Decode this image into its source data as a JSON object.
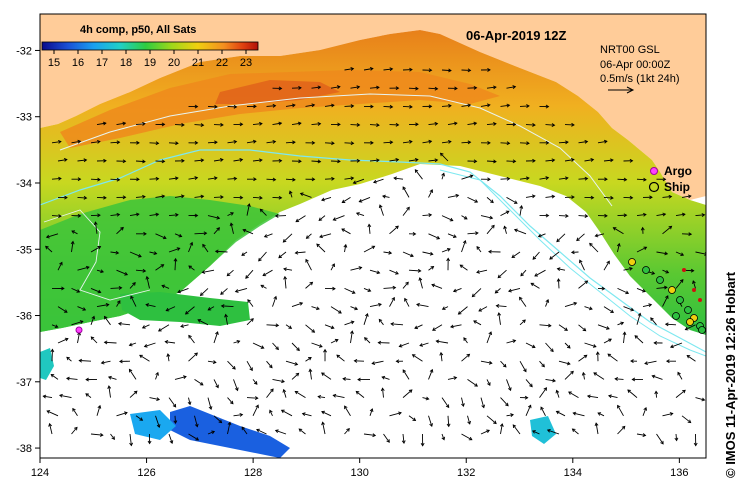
{
  "map": {
    "date_label": "06-Apr-2019 12Z",
    "colorbar": {
      "title": "4h comp, p50, All Sats",
      "ticks": [
        "15",
        "16",
        "17",
        "18",
        "19",
        "20",
        "21",
        "22",
        "23"
      ],
      "min": 14.5,
      "max": 23.5,
      "colors": [
        "#0a0a8c",
        "#1a50d6",
        "#1aa0f0",
        "#20d0c8",
        "#2ecc40",
        "#9ed81a",
        "#f0d010",
        "#f39020",
        "#e04010",
        "#b01008"
      ]
    },
    "info": {
      "line1": "NRT00 GSL",
      "line2": "06-Apr 00:00Z",
      "line3": "0.5m/s (1kt 24h)"
    },
    "legend": {
      "argo": "Argo",
      "ship": "Ship"
    },
    "credit": "© IMOS 11-Apr-2019 12:26 Hobart",
    "lon_ticks": [
      "124",
      "126",
      "128",
      "130",
      "132",
      "134",
      "136"
    ],
    "lat_ticks": [
      "-32",
      "-33",
      "-34",
      "-35",
      "-36",
      "-37",
      "-38"
    ],
    "extent": {
      "lon_min": 124,
      "lon_max": 136.5,
      "lat_max": -31.45,
      "lat_min": -38.15
    },
    "land_color": "#ffcc99",
    "cloud_color": "#ffffff"
  }
}
